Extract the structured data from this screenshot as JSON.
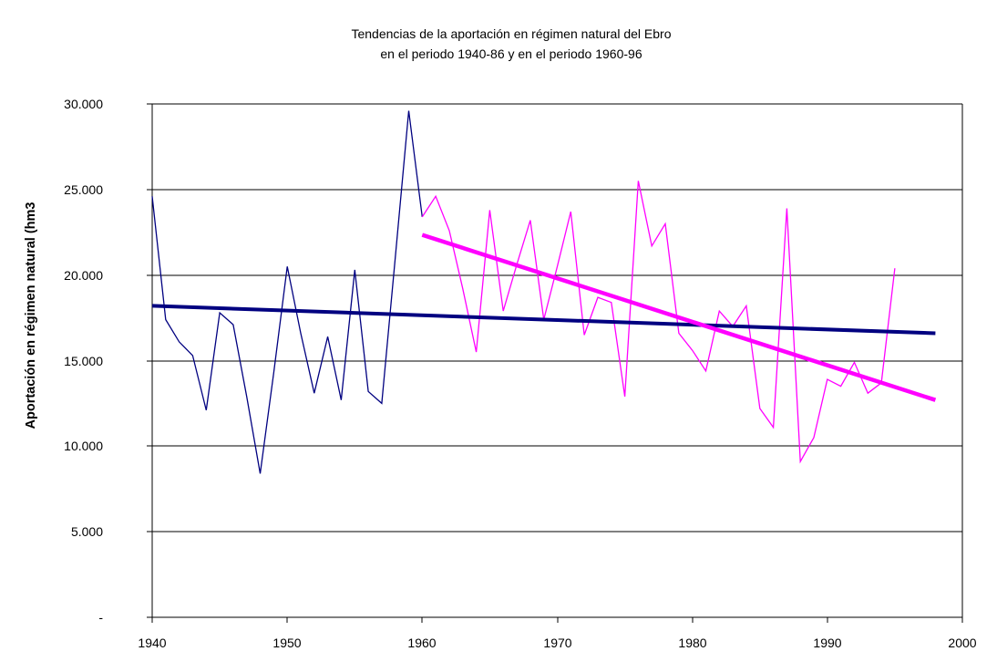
{
  "title": {
    "line1": "Tendencias de la aportación en régimen natural del Ebro",
    "line2": "en el periodo 1940-86 y en el periodo 1960-96"
  },
  "y_axis": {
    "title": "Aportación en régimen natural (hm3",
    "tick_labels": [
      "30.000",
      "25.000",
      "20.000",
      "15.000",
      "10.000",
      "5.000",
      "-"
    ],
    "tick_values": [
      30000,
      25000,
      20000,
      15000,
      10000,
      5000,
      0
    ]
  },
  "x_axis": {
    "tick_labels": [
      "1940",
      "1950",
      "1960",
      "1970",
      "1980",
      "1990",
      "2000"
    ],
    "tick_values": [
      1940,
      1950,
      1960,
      1970,
      1980,
      1990,
      2000
    ]
  },
  "colors": {
    "axis_and_grid": "#000000",
    "background": "#FFFFFF",
    "series_1940_86": "#000080",
    "series_1960_96": "#FF00FF",
    "trend_1940_86": "#000080",
    "trend_1960_96": "#FF00FF"
  },
  "chart_data": {
    "type": "line",
    "title": "Tendencias de la aportación en régimen natural del Ebro en el periodo 1940-86 y en el periodo 1960-96",
    "xlabel": "",
    "ylabel": "Aportación en régimen natural (hm3",
    "xlim": [
      1940,
      2000
    ],
    "ylim": [
      0,
      30000
    ],
    "x_ticks": [
      1940,
      1950,
      1960,
      1970,
      1980,
      1990,
      2000
    ],
    "y_ticks": [
      0,
      5000,
      10000,
      15000,
      20000,
      25000,
      30000
    ],
    "grid": "horizontal-only",
    "legend": "none",
    "series": [
      {
        "name": "aportacion-anual-periodo-1940-86",
        "color": "#000080",
        "stroke_width": 1.3,
        "x": [
          1940,
          1941,
          1942,
          1943,
          1944,
          1945,
          1946,
          1947,
          1948,
          1949,
          1950,
          1951,
          1952,
          1953,
          1954,
          1955,
          1956,
          1957,
          1958,
          1959,
          1960
        ],
        "y": [
          24600,
          17400,
          16100,
          15300,
          12100,
          17800,
          17100,
          12900,
          8400,
          14300,
          20500,
          16600,
          13100,
          16400,
          12700,
          20300,
          13200,
          12500,
          21000,
          29600,
          23400
        ]
      },
      {
        "name": "aportacion-anual-periodo-1960-96",
        "color": "#FF00FF",
        "stroke_width": 1.3,
        "x": [
          1960,
          1961,
          1962,
          1963,
          1964,
          1965,
          1966,
          1967,
          1968,
          1969,
          1970,
          1971,
          1972,
          1973,
          1974,
          1975,
          1976,
          1977,
          1978,
          1979,
          1980,
          1981,
          1982,
          1983,
          1984,
          1985,
          1986,
          1987,
          1988,
          1989,
          1990,
          1991,
          1992,
          1993,
          1994,
          1995
        ],
        "y": [
          23400,
          24600,
          22600,
          19200,
          15500,
          23800,
          17900,
          20600,
          23200,
          17400,
          20500,
          23700,
          16500,
          18700,
          18400,
          12900,
          25500,
          21700,
          23000,
          16600,
          15600,
          14400,
          17900,
          17000,
          18200,
          12200,
          11100,
          23900,
          9100,
          10500,
          13900,
          13500,
          14900,
          13100,
          13700,
          20400
        ]
      },
      {
        "name": "tendencia-lineal-1940-86",
        "color": "#000080",
        "stroke_width": 4,
        "x": [
          1940,
          1998
        ],
        "y": [
          18200,
          16600
        ]
      },
      {
        "name": "tendencia-lineal-1960-96",
        "color": "#FF00FF",
        "stroke_width": 4.5,
        "x": [
          1960,
          1998
        ],
        "y": [
          22350,
          12700
        ]
      }
    ]
  }
}
